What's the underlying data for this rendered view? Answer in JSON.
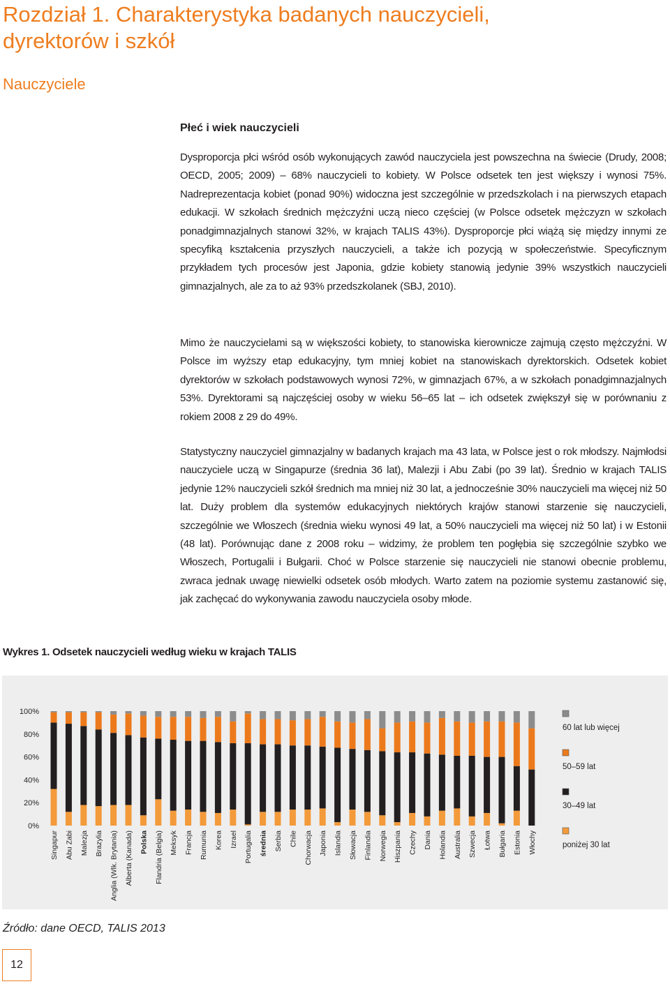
{
  "header": {
    "title": [
      "Rozdział 1. Charakterystyka badanych nauczycieli,",
      "dyrektorów i szkół"
    ],
    "subtitle": "Nauczyciele"
  },
  "section": {
    "heading": "Płeć i wiek nauczycieli",
    "paragraphs": [
      "Dysproporcja płci wśród osób wykonujących zawód nauczyciela jest powszechna na świecie (Drudy, 2008; OECD, 2005; 2009) – 68% nauczycieli to kobiety. W Polsce odsetek ten jest większy i wynosi 75%. Nadreprezentacja kobiet (ponad 90%) widoczna jest szczególnie w przedszkolach i na pierwszych etapach edukacji. W szkołach średnich mężczyźni uczą nieco częściej (w Polsce odsetek mężczyzn w szkołach ponadgimnazjalnych stanowi 32%, w krajach TALIS 43%). Dysproporcje płci wiążą się między innymi ze specyfiką kształcenia przyszłych nauczycieli, a także ich pozycją w społeczeństwie. Specyficznym przykładem tych procesów jest Japonia, gdzie kobiety stanowią jedynie 39% wszystkich nauczycieli gimnazjalnych, ale za to aż 93% przedszkolanek (SBJ, 2010).",
      "Mimo że nauczycielami są w większości kobiety, to stanowiska kierownicze zajmują często mężczyźni. W Polsce im wyższy etap edukacyjny, tym mniej kobiet na stanowiskach dyrektorskich. Odsetek kobiet dyrektorów w szkołach podstawowych wynosi 72%, w gimnazjach 67%, a w szkołach ponadgimnazjalnych 53%. Dyrektorami są najczęściej osoby w wieku 56–65 lat – ich odsetek zwiększył się w porównaniu z rokiem 2008 z 29 do 49%.",
      "Statystyczny nauczyciel gimnazjalny w badanych krajach ma 43 lata, w Polsce jest o rok młodszy. Najmłodsi nauczyciele uczą w Singapurze (średnia 36 lat), Malezji i Abu Zabi (po 39 lat). Średnio w krajach TALIS jedynie 12% nauczycieli szkół średnich ma mniej niż 30 lat, a jednocześnie 30% nauczycieli ma więcej niż 50 lat. Duży problem dla systemów edukacyjnych niektórych krajów stanowi starzenie się nauczycieli, szczególnie we Włoszech (średnia wieku wynosi 49 lat, a 50% nauczycieli ma więcej niż 50 lat) i w Estonii (48 lat). Porównując dane z 2008 roku – widzimy, że problem ten pogłębia się szczególnie szybko we Włoszech, Portugalii i Bułgarii. Choć w Polsce starzenie się nauczycieli nie stanowi obecnie problemu, zwraca jednak uwagę niewielki odsetek osób młodych. Warto zatem na poziomie systemu zastanowić się, jak zachęcać do wykonywania zawodu nauczyciela osoby młode."
    ]
  },
  "chart_data": {
    "type": "stacked-bar",
    "title": "Wykres 1. Odsetek nauczycieli według wieku w krajach TALIS",
    "categories": [
      "Singapur",
      "Abu Zabi",
      "Malezja",
      "Brazylia",
      "Anglia (Wlk. Brytania)",
      "Alberta (Kanada)",
      "Polska",
      "Flandria (Belgia)",
      "Meksyk",
      "Francja",
      "Rumunia",
      "Korea",
      "Izrael",
      "Portugalia",
      "średnia",
      "Serbia",
      "Chile",
      "Chorwacja",
      "Japonia",
      "Islandia",
      "Słowacja",
      "Finlandia",
      "Norwegia",
      "Hiszpania",
      "Czechy",
      "Dania",
      "Holandia",
      "Australia",
      "Szwecja",
      "Łotwa",
      "Bułgaria",
      "Estonia",
      "Włochy"
    ],
    "highlight": [
      6,
      14
    ],
    "series": [
      {
        "name": "poniżej 30 lat",
        "color": "#f39a3b",
        "values": [
          32,
          12,
          18,
          17,
          18,
          18,
          9,
          23,
          13,
          14,
          12,
          11,
          14,
          1,
          12,
          12,
          14,
          14,
          15,
          3,
          14,
          12,
          9,
          3,
          11,
          8,
          13,
          15,
          8,
          11,
          2,
          13,
          0
        ]
      },
      {
        "name": "30–49 lat",
        "color": "#231f20",
        "values": [
          58,
          77,
          69,
          67,
          63,
          61,
          68,
          53,
          62,
          60,
          62,
          62,
          58,
          71,
          59,
          59,
          56,
          56,
          54,
          65,
          53,
          54,
          56,
          61,
          53,
          55,
          49,
          46,
          53,
          49,
          58,
          39,
          49
        ]
      },
      {
        "name": "50–59 lat",
        "color": "#ec7a1c",
        "values": [
          9,
          10,
          12,
          15,
          16,
          19,
          19,
          19,
          20,
          21,
          20,
          22,
          19,
          26,
          22,
          22,
          22,
          23,
          26,
          23,
          23,
          27,
          20,
          26,
          27,
          27,
          32,
          30,
          29,
          31,
          31,
          38,
          36
        ]
      },
      {
        "name": "60 lat lub więcej",
        "color": "#8c8c8c",
        "values": [
          1,
          1,
          1,
          1,
          3,
          2,
          4,
          5,
          5,
          5,
          6,
          5,
          9,
          2,
          7,
          7,
          8,
          7,
          5,
          9,
          10,
          7,
          15,
          10,
          9,
          10,
          6,
          9,
          10,
          9,
          9,
          10,
          15
        ]
      }
    ],
    "ylim": [
      0,
      100
    ],
    "yticks": [
      {
        "value": 0,
        "label": "0%"
      },
      {
        "value": 20,
        "label": "20%"
      },
      {
        "value": 40,
        "label": "40%"
      },
      {
        "value": 60,
        "label": "60%"
      },
      {
        "value": 80,
        "label": "80%"
      },
      {
        "value": 100,
        "label": "100%"
      }
    ],
    "legend": "right"
  },
  "source": "Źródło: dane OECD, TALIS 2013",
  "page_number": "12"
}
